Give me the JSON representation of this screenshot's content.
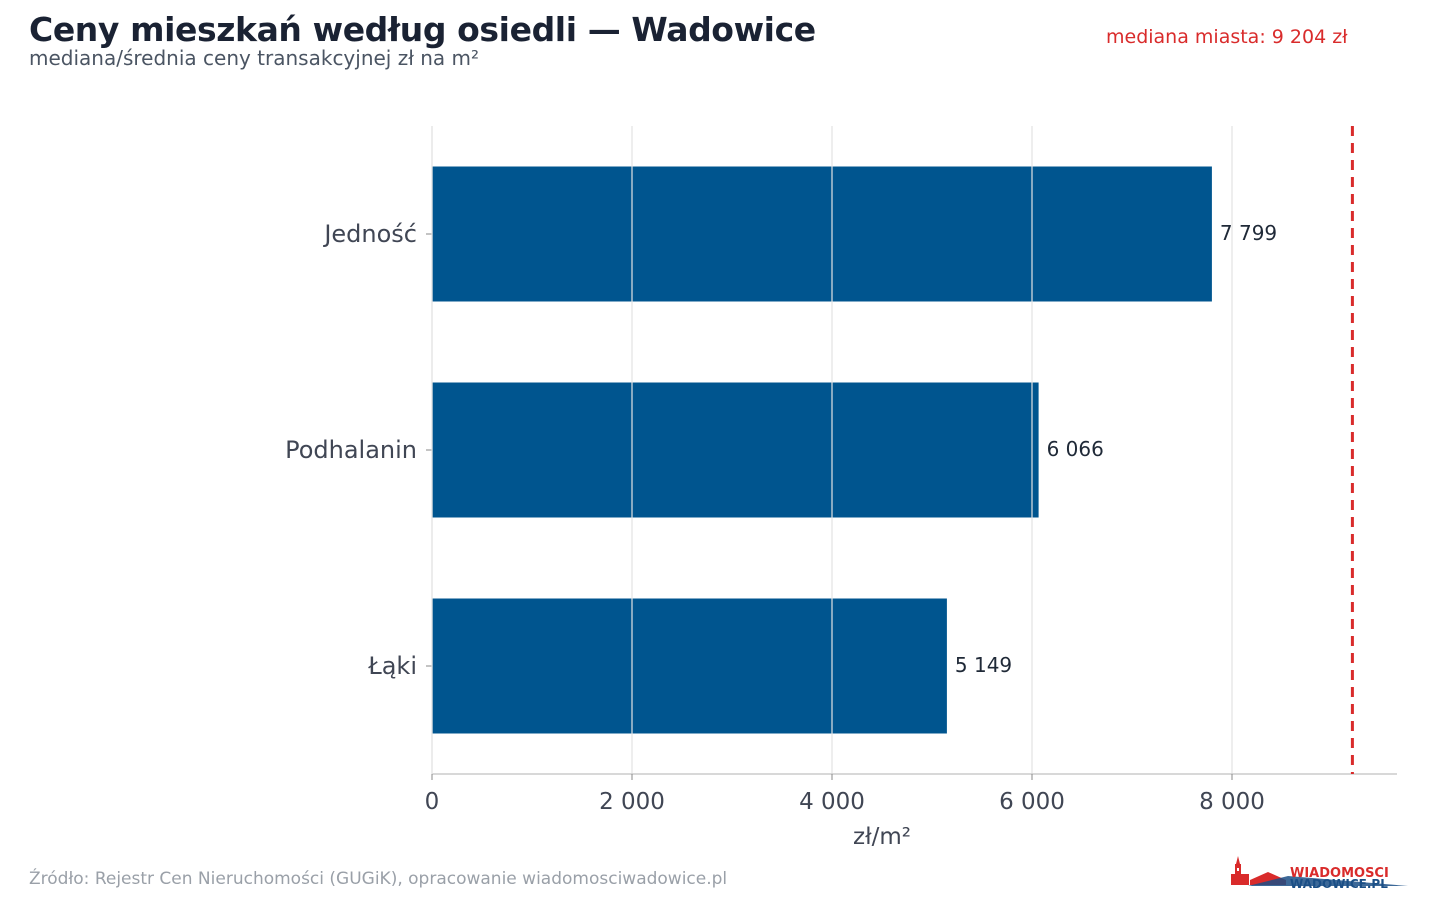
{
  "header": {
    "title": "Ceny mieszkań według osiedli — Wadowice",
    "subtitle": "mediana/średnia ceny transakcyjnej zł na m²",
    "median_note": "mediana miasta: 9 204 zł"
  },
  "footer": {
    "source": "Źródło: Rejestr Cen Nieruchomości (GUGiK), opracowanie wiadomosciwadowice.pl",
    "logo_line1": "WIADOMOSCI",
    "logo_line2": "WADOWICE.PL"
  },
  "colors": {
    "bar": "#00558f",
    "median_line": "#d92b2b",
    "grid": "#e3e3e3",
    "axis": "#cccccc",
    "tick_text": "#404654",
    "value_text": "#1f2937"
  },
  "chart_data": {
    "type": "bar",
    "orientation": "horizontal",
    "categories": [
      "Jedność",
      "Podhalanin",
      "Łąki"
    ],
    "values": [
      7799,
      6066,
      5149
    ],
    "value_labels": [
      "7 799",
      "6 066",
      "5 149"
    ],
    "xlabel": "zł/m²",
    "ylabel": "",
    "xlim": [
      0,
      9650
    ],
    "xticks": [
      0,
      2000,
      4000,
      6000,
      8000
    ],
    "xtick_labels": [
      "0",
      "2 000",
      "4 000",
      "6 000",
      "8 000"
    ],
    "reference_line": {
      "value": 9204,
      "style": "dashed"
    },
    "grid": "vertical"
  }
}
